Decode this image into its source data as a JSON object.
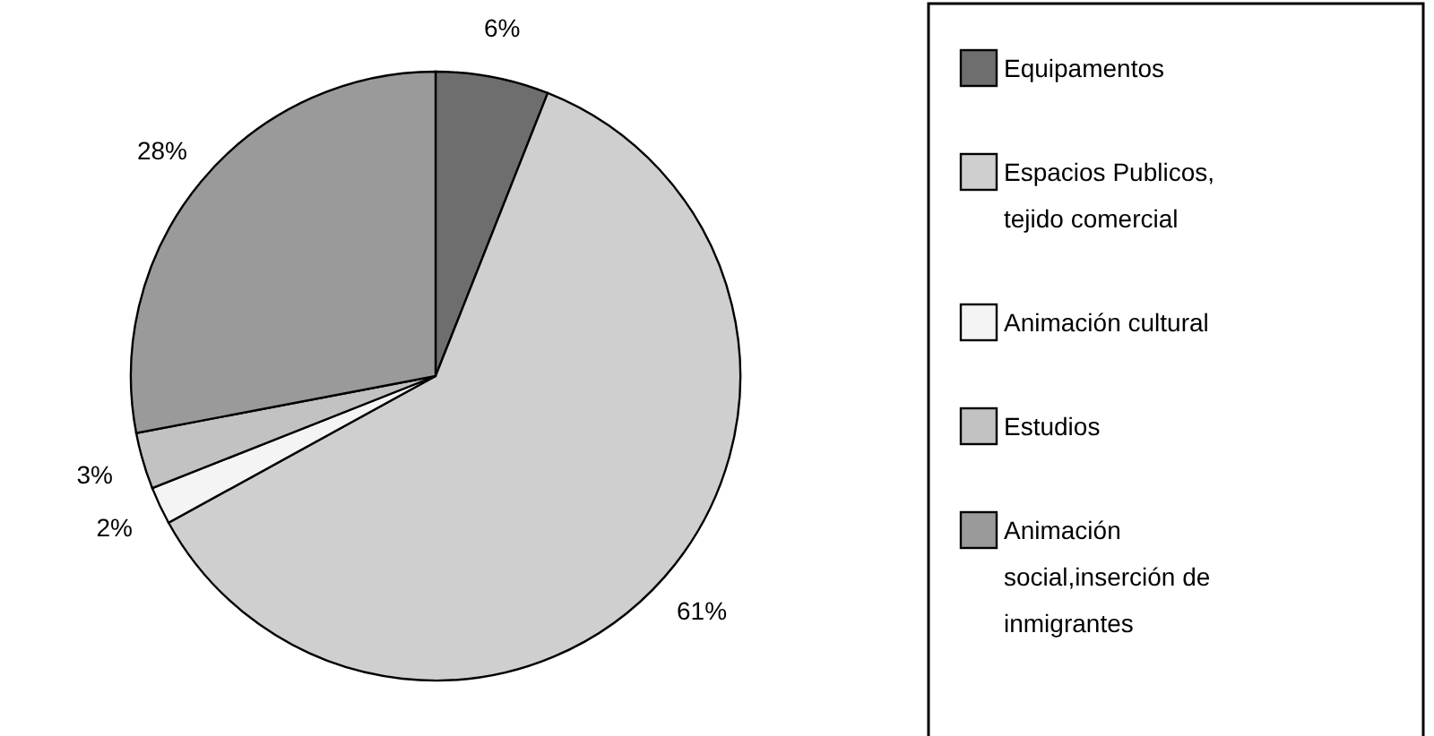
{
  "chart_data": {
    "type": "pie",
    "categories": [
      "Equipamentos",
      "Espacios Publicos, tejido comercial",
      "Animación cultural",
      "Estudios",
      "Animación social,inserción de inmigrantes"
    ],
    "values": [
      6,
      61,
      2,
      3,
      28
    ],
    "colors": [
      "#6e6e6e",
      "#cfcfcf",
      "#f4f4f4",
      "#c2c2c2",
      "#9a9a9a"
    ],
    "value_labels": [
      "6%",
      "61%",
      "2%",
      "3%",
      "28%"
    ],
    "legend": "right"
  }
}
